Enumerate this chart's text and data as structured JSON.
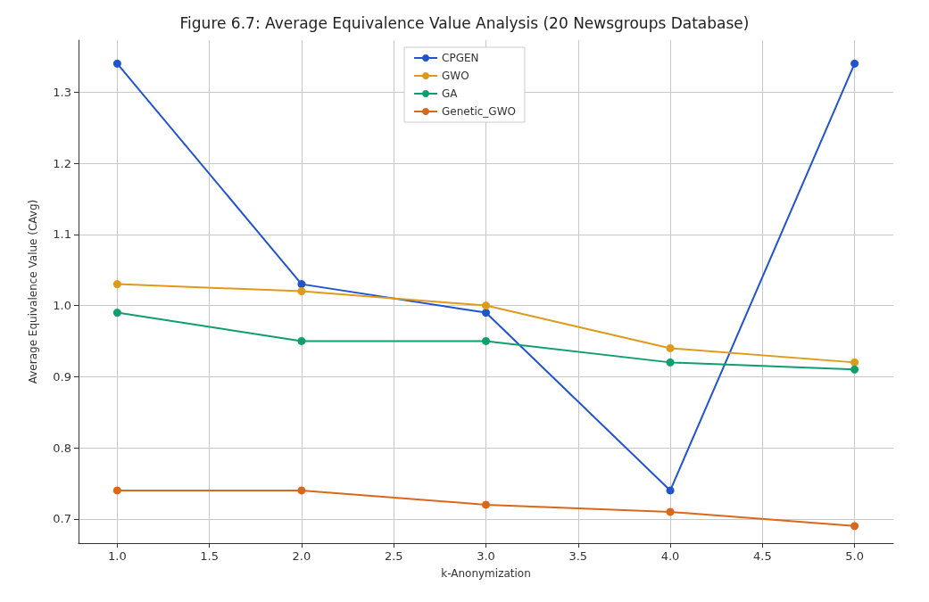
{
  "chart_data": {
    "type": "line",
    "title": "Figure 6.7: Average Equivalence Value Analysis (20 Newsgroups Database)",
    "xlabel": "k-Anonymization",
    "ylabel": "Average Equivalence Value (CAvg)",
    "x": [
      1,
      2,
      3,
      4,
      5
    ],
    "series": [
      {
        "name": "CPGEN",
        "color": "#1f53d0",
        "values": [
          1.34,
          1.03,
          0.99,
          0.74,
          1.34
        ]
      },
      {
        "name": "GWO",
        "color": "#df9a1a",
        "values": [
          1.03,
          1.02,
          1.0,
          0.94,
          0.92
        ]
      },
      {
        "name": "GA",
        "color": "#0f9e6e",
        "values": [
          0.99,
          0.95,
          0.95,
          0.92,
          0.91
        ]
      },
      {
        "name": "Genetic_GWO",
        "color": "#d9681a",
        "values": [
          0.74,
          0.74,
          0.72,
          0.71,
          0.69
        ]
      }
    ],
    "xlim": [
      0.79,
      5.21
    ],
    "xticks": [
      {
        "value": 1,
        "label": "1.0"
      },
      {
        "value": 1.5,
        "label": "1.5"
      },
      {
        "value": 2,
        "label": "2.0"
      },
      {
        "value": 2.5,
        "label": "2.5"
      },
      {
        "value": 3,
        "label": "3.0"
      },
      {
        "value": 3.5,
        "label": "3.5"
      },
      {
        "value": 4,
        "label": "4.0"
      },
      {
        "value": 4.5,
        "label": "4.5"
      },
      {
        "value": 5,
        "label": "5.0"
      }
    ],
    "ylim": [
      0.666,
      1.373
    ],
    "yticks": [
      {
        "value": 0.7,
        "label": "0.7"
      },
      {
        "value": 0.8,
        "label": "0.8"
      },
      {
        "value": 0.9,
        "label": "0.9"
      },
      {
        "value": 1.0,
        "label": "1.0"
      },
      {
        "value": 1.1,
        "label": "1.1"
      },
      {
        "value": 1.2,
        "label": "1.2"
      },
      {
        "value": 1.3,
        "label": "1.3"
      }
    ],
    "grid": true,
    "legend": "top",
    "marker": "circle",
    "line_style": "solid"
  }
}
